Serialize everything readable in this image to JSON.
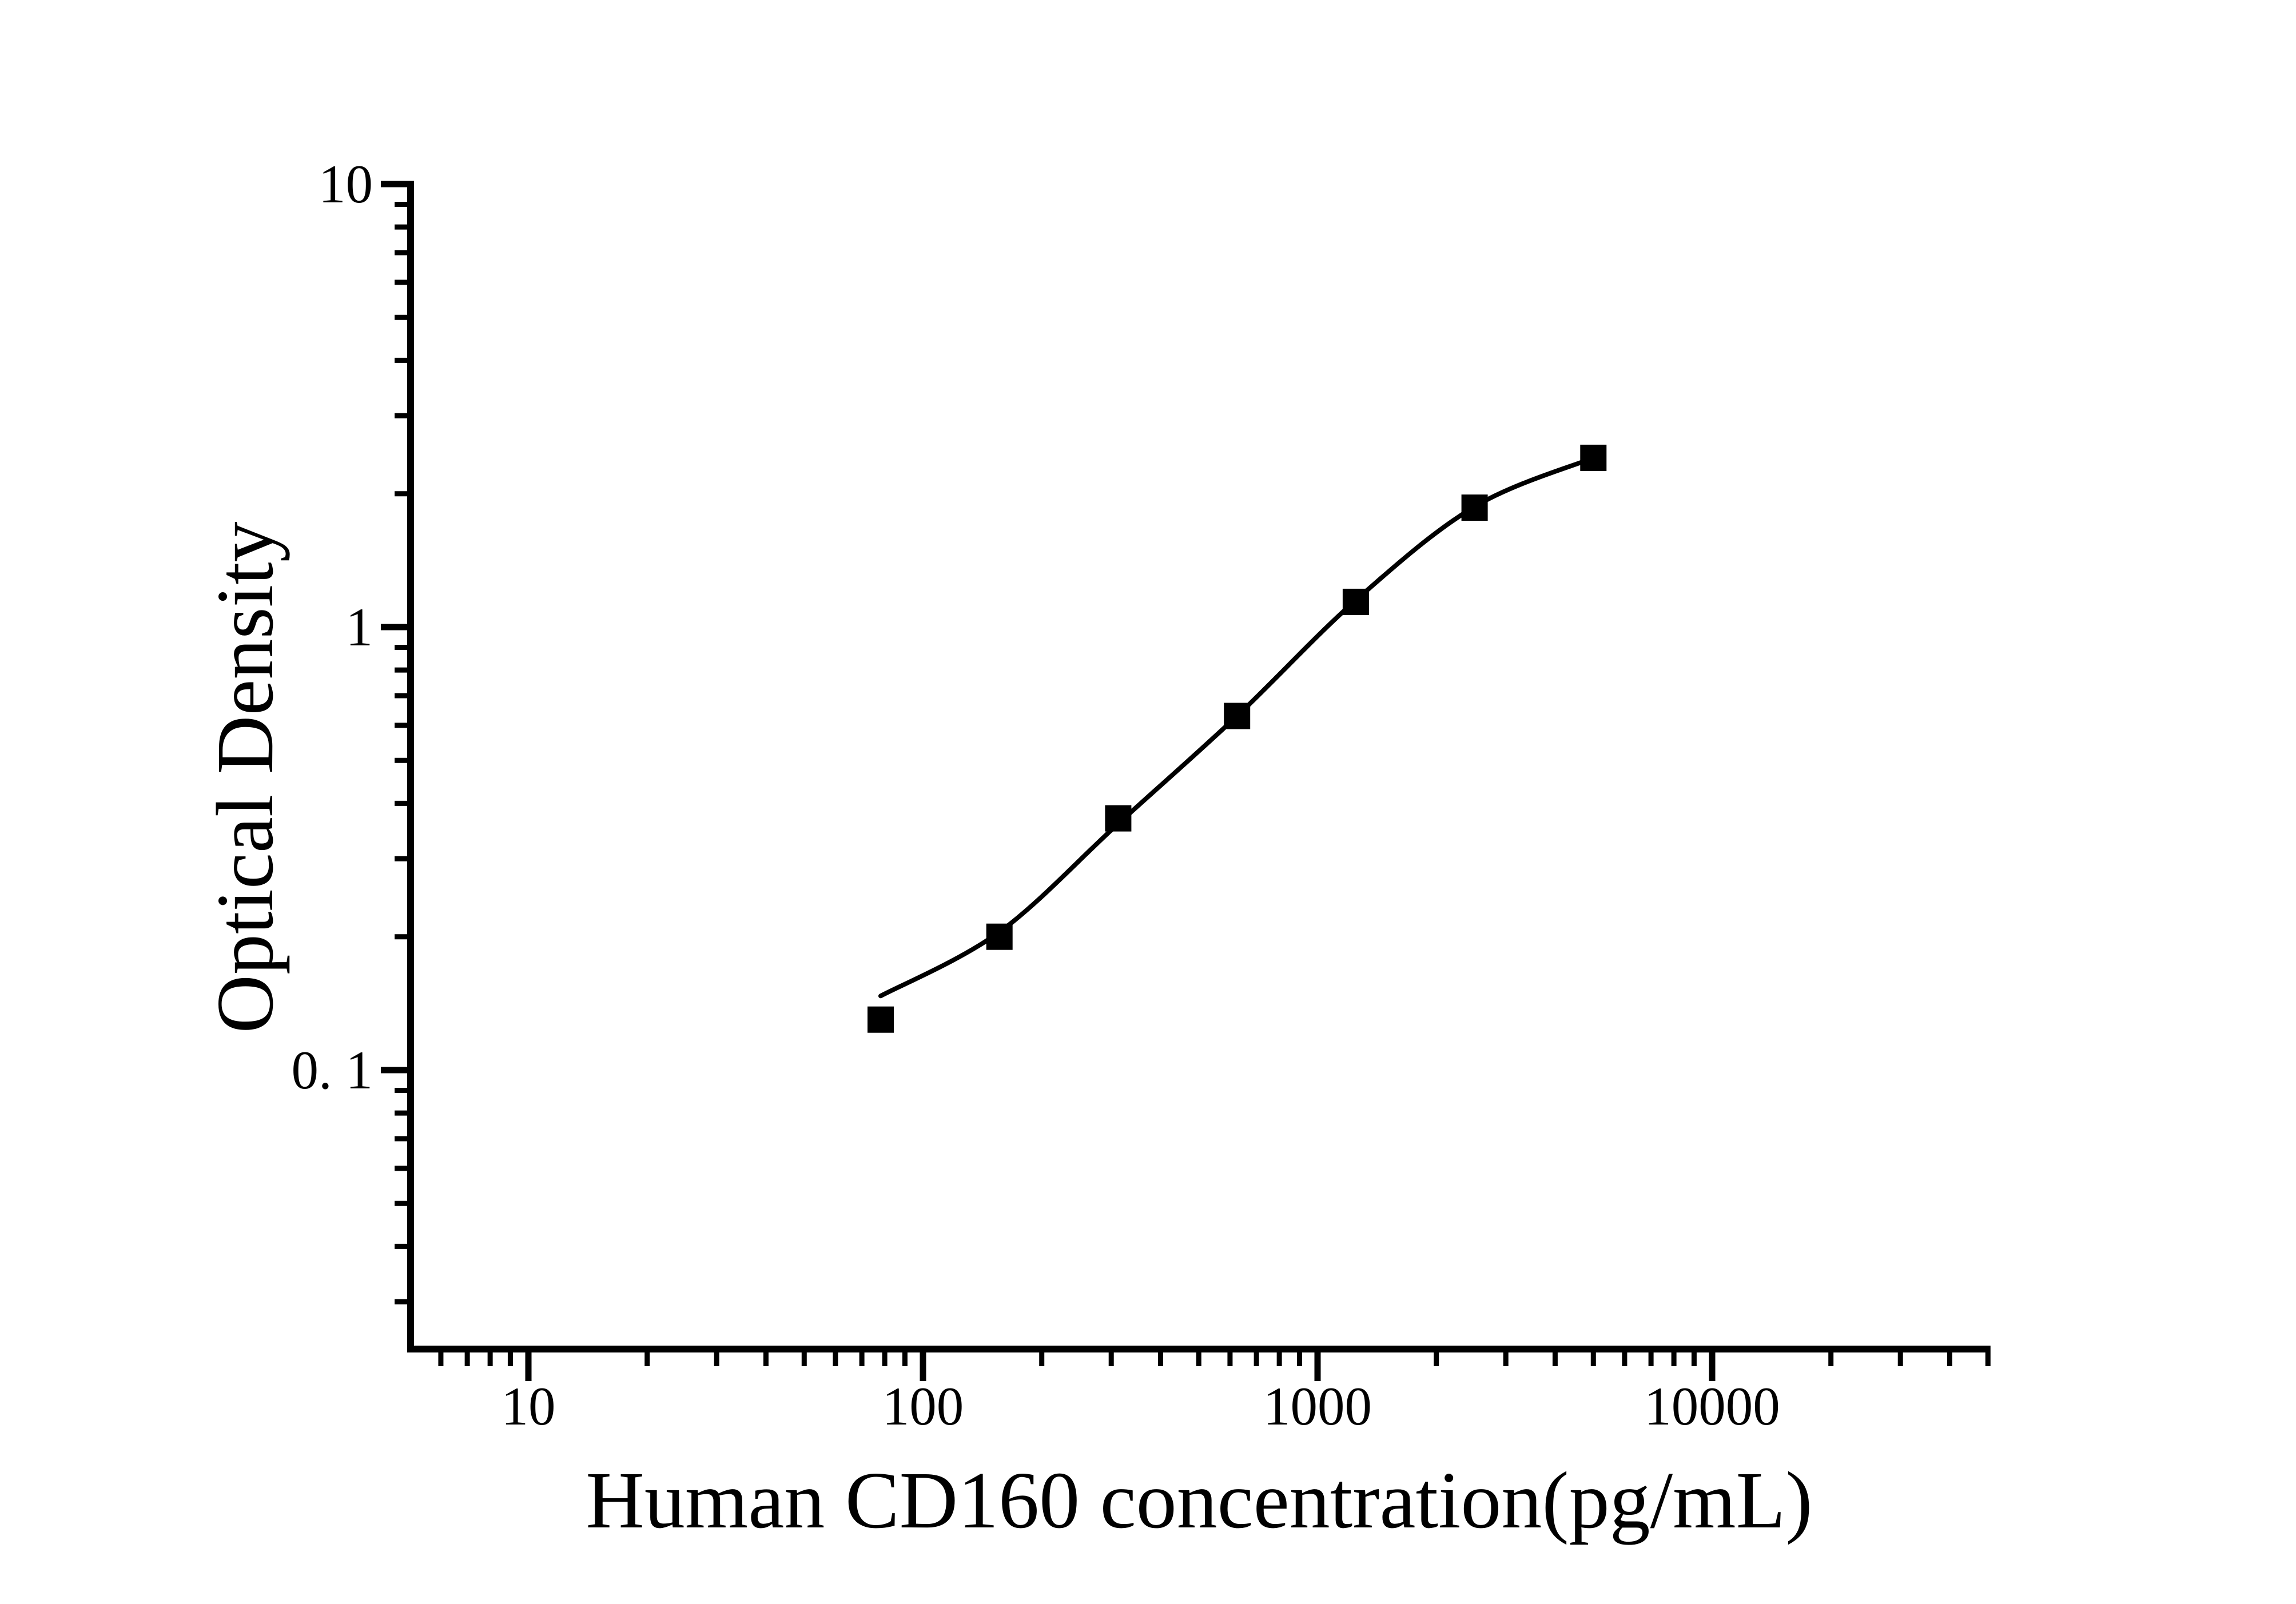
{
  "figure": {
    "background_color": "#ffffff",
    "ink_color": "#000000",
    "x_axis_title": "Human CD160 concentration(pg/mL)",
    "y_axis_title": "Optical Density",
    "x_tick_labels": [
      "10",
      "100",
      "1000",
      "10000"
    ],
    "y_tick_labels": [
      "10",
      "1",
      "0. 1"
    ]
  },
  "chart_data": {
    "type": "scatter",
    "title": "",
    "xlabel": "Human CD160 concentration(pg/mL)",
    "ylabel": "Optical Density",
    "x_scale": "log",
    "y_scale": "log",
    "xlim": [
      5,
      50000
    ],
    "ylim": [
      0.023,
      10
    ],
    "x_major_ticks": [
      10,
      100,
      1000,
      10000
    ],
    "y_major_ticks": [
      10,
      1,
      0.1
    ],
    "grid": false,
    "legend": false,
    "marker": "filled-black-square",
    "x": [
      78.13,
      156.25,
      312.5,
      625,
      1250,
      2500,
      5000
    ],
    "series": [
      {
        "name": "standard-points-od",
        "values": [
          0.13,
          0.2,
          0.37,
          0.63,
          1.14,
          1.86,
          2.41
        ]
      },
      {
        "name": "fitted-curve-od",
        "values": [
          0.147,
          0.205,
          0.36,
          0.63,
          1.15,
          1.87,
          2.41
        ]
      }
    ]
  }
}
